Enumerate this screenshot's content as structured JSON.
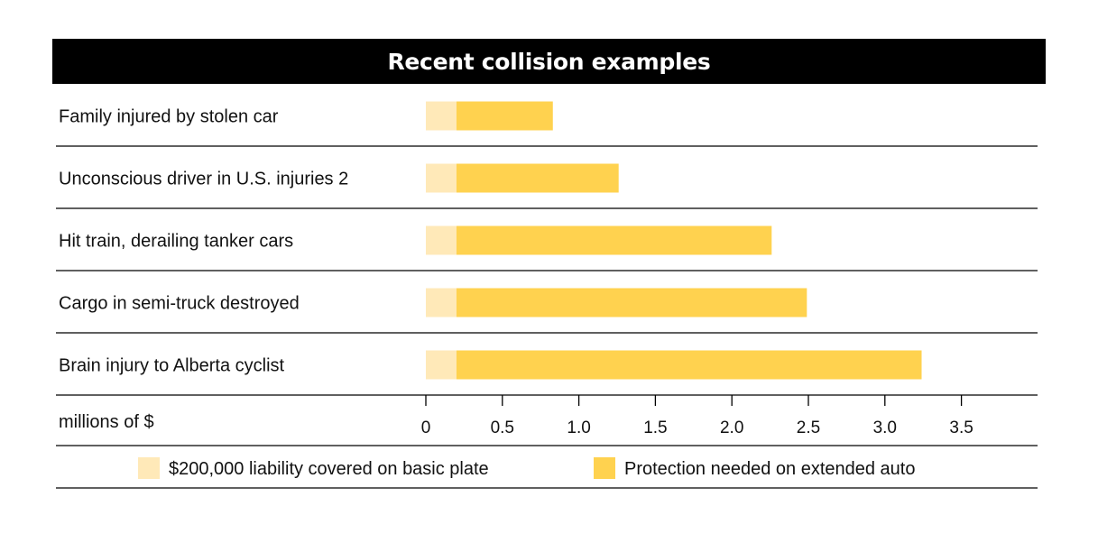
{
  "chart_data": {
    "type": "bar",
    "stacked": true,
    "orientation": "horizontal",
    "title": "Recent collision examples",
    "categories": [
      "Family injured by stolen car",
      "Unconscious driver in U.S. injuries 2",
      "Hit train, derailing tanker cars",
      "Cargo in semi-truck destroyed",
      "Brain injury to Alberta cyclist"
    ],
    "series": [
      {
        "name": "$200,000 liability covered on basic plate",
        "color": "#ffe9b8",
        "values": [
          0.2,
          0.2,
          0.2,
          0.2,
          0.2
        ]
      },
      {
        "name": "Protection needed on extended auto",
        "color": "#ffd24f",
        "values": [
          0.63,
          1.06,
          2.06,
          2.29,
          3.04
        ]
      }
    ],
    "xlabel": "millions of $",
    "xlim": [
      0,
      4
    ],
    "ticks": [
      0,
      0.5,
      1.0,
      1.5,
      2.0,
      2.5,
      3.0,
      3.5
    ],
    "tick_labels": [
      "0",
      "0.5",
      "1.0",
      "1.5",
      "2.0",
      "2.5",
      "3.0",
      "3.5"
    ],
    "legend_position": "bottom"
  }
}
